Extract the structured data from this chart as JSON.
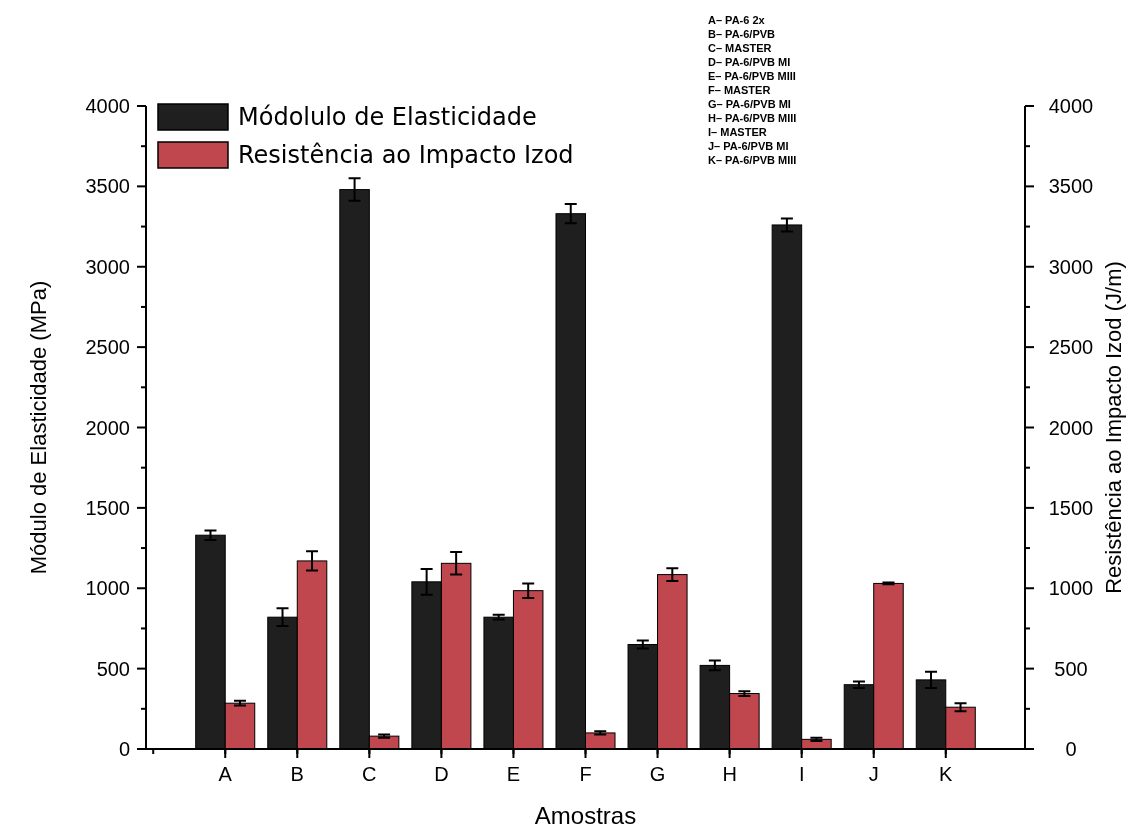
{
  "chart_data": {
    "type": "bar",
    "xlabel": "Amostras",
    "ylabel": "Módulo de Elasticidade (MPa)",
    "y2label": "Resistência ao Impacto Izod (J/m)",
    "categories": [
      "A",
      "B",
      "C",
      "D",
      "E",
      "F",
      "G",
      "H",
      "I",
      "J",
      "K"
    ],
    "series": [
      {
        "name": "Módolulo de Elasticidade",
        "color": "#1f1f1f",
        "values": [
          1330,
          820,
          3480,
          1040,
          820,
          3330,
          650,
          520,
          3260,
          400,
          430
        ],
        "errors": [
          30,
          55,
          70,
          80,
          15,
          60,
          25,
          30,
          40,
          20,
          50
        ]
      },
      {
        "name": "Resistência ao Impacto Izod",
        "color": "#c0474d",
        "axis": "y2",
        "values": [
          285,
          1170,
          80,
          1155,
          985,
          100,
          1085,
          345,
          60,
          1030,
          260
        ],
        "errors": [
          15,
          60,
          10,
          70,
          45,
          10,
          40,
          15,
          10,
          5,
          25
        ]
      }
    ],
    "ylim": [
      0,
      4000
    ],
    "yticks": [
      0,
      {
        "value": 250,
        "label": null
      },
      500,
      {
        "value": 750,
        "label": null
      },
      1000,
      {
        "value": 1250,
        "label": null
      },
      1500,
      {
        "value": 1750,
        "label": null
      },
      2000,
      {
        "value": 2250,
        "label": null
      },
      2500,
      {
        "value": 2750,
        "label": null
      },
      3000,
      {
        "value": 3250,
        "label": null
      },
      3500,
      {
        "value": 3750,
        "label": null
      },
      4000
    ],
    "y2lim": [
      0,
      4000
    ],
    "y2ticks": [
      0,
      {
        "value": 250,
        "label": null
      },
      500,
      {
        "value": 750,
        "label": null
      },
      1000,
      {
        "value": 1250,
        "label": null
      },
      1500,
      {
        "value": 1750,
        "label": null
      },
      2000,
      {
        "value": 2250,
        "label": null
      },
      2500,
      {
        "value": 2750,
        "label": null
      },
      3000,
      {
        "value": 3250,
        "label": null
      },
      3500,
      {
        "value": 3750,
        "label": null
      },
      4000
    ],
    "legend": "top left",
    "grid": false,
    "annotations": [
      "A– PA-6 2x",
      "B– PA-6/PVB",
      "C– MASTER",
      "D– PA-6/PVB MI",
      "E– PA-6/PVB MIII",
      "F– MASTER",
      "G– PA-6/PVB MI",
      "H– PA-6/PVB MIII",
      "I– MASTER",
      "J– PA-6/PVB MI",
      "K– PA-6/PVB MIII"
    ]
  }
}
